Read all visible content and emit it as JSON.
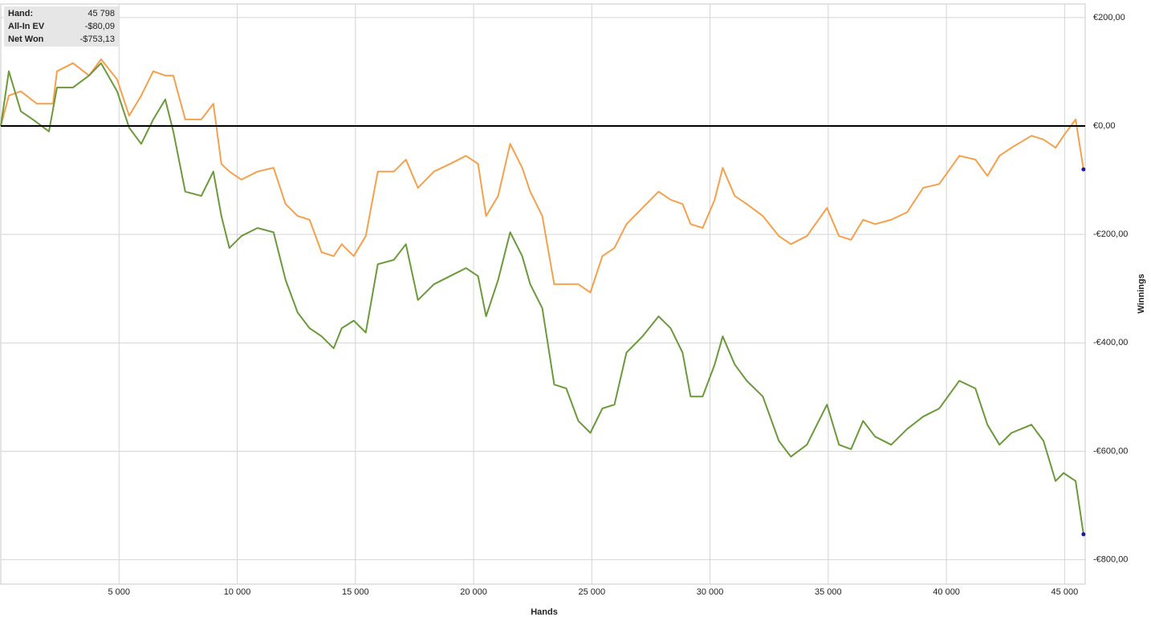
{
  "chart_data": {
    "type": "line",
    "x_label": "Hands",
    "y_label": "Winnings",
    "xlim": [
      0,
      45870
    ],
    "ylim": [
      -845,
      225
    ],
    "xticks": [
      {
        "value": 5000,
        "label": "5 000"
      },
      {
        "value": 10000,
        "label": "10 000"
      },
      {
        "value": 15000,
        "label": "15 000"
      },
      {
        "value": 20000,
        "label": "20 000"
      },
      {
        "value": 25000,
        "label": "25 000"
      },
      {
        "value": 30000,
        "label": "30 000"
      },
      {
        "value": 35000,
        "label": "35 000"
      },
      {
        "value": 40000,
        "label": "40 000"
      },
      {
        "value": 45000,
        "label": "45 000"
      }
    ],
    "yticks": [
      {
        "value": 200,
        "label": "€200,00"
      },
      {
        "value": 0,
        "label": "€0,00"
      },
      {
        "value": -200,
        "label": "-€200,00"
      },
      {
        "value": -400,
        "label": "-€400,00"
      },
      {
        "value": -600,
        "label": "-€600,00"
      },
      {
        "value": -800,
        "label": "-€800,00"
      }
    ],
    "grid": true,
    "y_axis_side": "right",
    "end_marker_color": "#1a1aa0",
    "series": [
      {
        "name": "All-In EV",
        "color": "#f5a04c",
        "x": [
          0,
          339,
          848,
          1527,
          2206,
          2375,
          3054,
          3732,
          4241,
          4920,
          5429,
          5938,
          6447,
          6956,
          7295,
          7804,
          8483,
          8991,
          9331,
          9670,
          10179,
          10858,
          11536,
          12045,
          12554,
          13063,
          13572,
          14081,
          14420,
          14929,
          15438,
          15947,
          16626,
          17135,
          17644,
          18322,
          19001,
          19679,
          20188,
          20528,
          21037,
          21546,
          22054,
          22394,
          22903,
          23412,
          23921,
          24430,
          24939,
          25448,
          25956,
          26465,
          27144,
          27823,
          28332,
          28841,
          29180,
          29689,
          30198,
          30537,
          31046,
          31555,
          32234,
          32912,
          33421,
          34100,
          34948,
          35457,
          35966,
          36475,
          36984,
          37662,
          38341,
          39020,
          39698,
          40546,
          41225,
          41734,
          42243,
          42752,
          43600,
          44109,
          44618,
          44957,
          45466,
          45798
        ],
        "values": [
          0,
          56,
          64,
          41,
          41,
          101,
          116,
          93,
          123,
          86,
          19,
          56,
          101,
          93,
          93,
          12,
          12,
          41,
          -70,
          -84,
          -99,
          -84,
          -77,
          -144,
          -166,
          -173,
          -233,
          -240,
          -218,
          -240,
          -203,
          -84,
          -84,
          -62,
          -114,
          -84,
          -70,
          -55,
          -70,
          -166,
          -129,
          -33,
          -77,
          -121,
          -166,
          -292,
          -292,
          -292,
          -307,
          -240,
          -225,
          -181,
          -151,
          -121,
          -136,
          -144,
          -181,
          -188,
          -136,
          -77,
          -129,
          -144,
          -166,
          -203,
          -218,
          -203,
          -151,
          -203,
          -210,
          -173,
          -181,
          -173,
          -159,
          -114,
          -107,
          -55,
          -62,
          -92,
          -55,
          -40,
          -18,
          -25,
          -40,
          -18,
          12,
          -80.09
        ]
      },
      {
        "name": "Net Won",
        "color": "#6a9a3a",
        "x": [
          0,
          339,
          848,
          1357,
          2036,
          2375,
          3054,
          3732,
          4241,
          4920,
          5429,
          5938,
          6447,
          6956,
          7295,
          7804,
          8483,
          8991,
          9331,
          9670,
          10179,
          10858,
          11536,
          12045,
          12554,
          13063,
          13572,
          14081,
          14420,
          14929,
          15438,
          15947,
          16626,
          17135,
          17644,
          18322,
          19001,
          19679,
          20188,
          20528,
          21037,
          21546,
          22054,
          22394,
          22903,
          23412,
          23921,
          24430,
          24939,
          25448,
          25956,
          26465,
          27144,
          27823,
          28332,
          28841,
          29180,
          29689,
          30198,
          30537,
          31046,
          31555,
          32234,
          32912,
          33421,
          34100,
          34948,
          35457,
          35966,
          36475,
          36984,
          37662,
          38341,
          39020,
          39698,
          40546,
          41225,
          41734,
          42243,
          42752,
          43600,
          44109,
          44618,
          44957,
          45466,
          45798
        ],
        "values": [
          0,
          101,
          27,
          12,
          -10,
          71,
          71,
          93,
          116,
          64,
          -3,
          -33,
          12,
          49,
          -10,
          -121,
          -129,
          -84,
          -166,
          -225,
          -203,
          -188,
          -196,
          -284,
          -344,
          -373,
          -388,
          -410,
          -373,
          -359,
          -381,
          -255,
          -247,
          -218,
          -321,
          -292,
          -277,
          -262,
          -277,
          -351,
          -284,
          -196,
          -240,
          -292,
          -336,
          -477,
          -484,
          -544,
          -566,
          -521,
          -514,
          -418,
          -388,
          -351,
          -373,
          -418,
          -499,
          -499,
          -440,
          -388,
          -440,
          -470,
          -499,
          -581,
          -610,
          -588,
          -514,
          -588,
          -596,
          -544,
          -573,
          -588,
          -559,
          -536,
          -521,
          -470,
          -484,
          -551,
          -588,
          -566,
          -551,
          -581,
          -655,
          -640,
          -655,
          -753.13
        ]
      }
    ]
  },
  "info_box": {
    "rows": [
      [
        "Hand:",
        "45 798"
      ],
      [
        "All-In EV",
        "-$80,09"
      ],
      [
        "Net Won",
        "-$753,13"
      ]
    ]
  }
}
